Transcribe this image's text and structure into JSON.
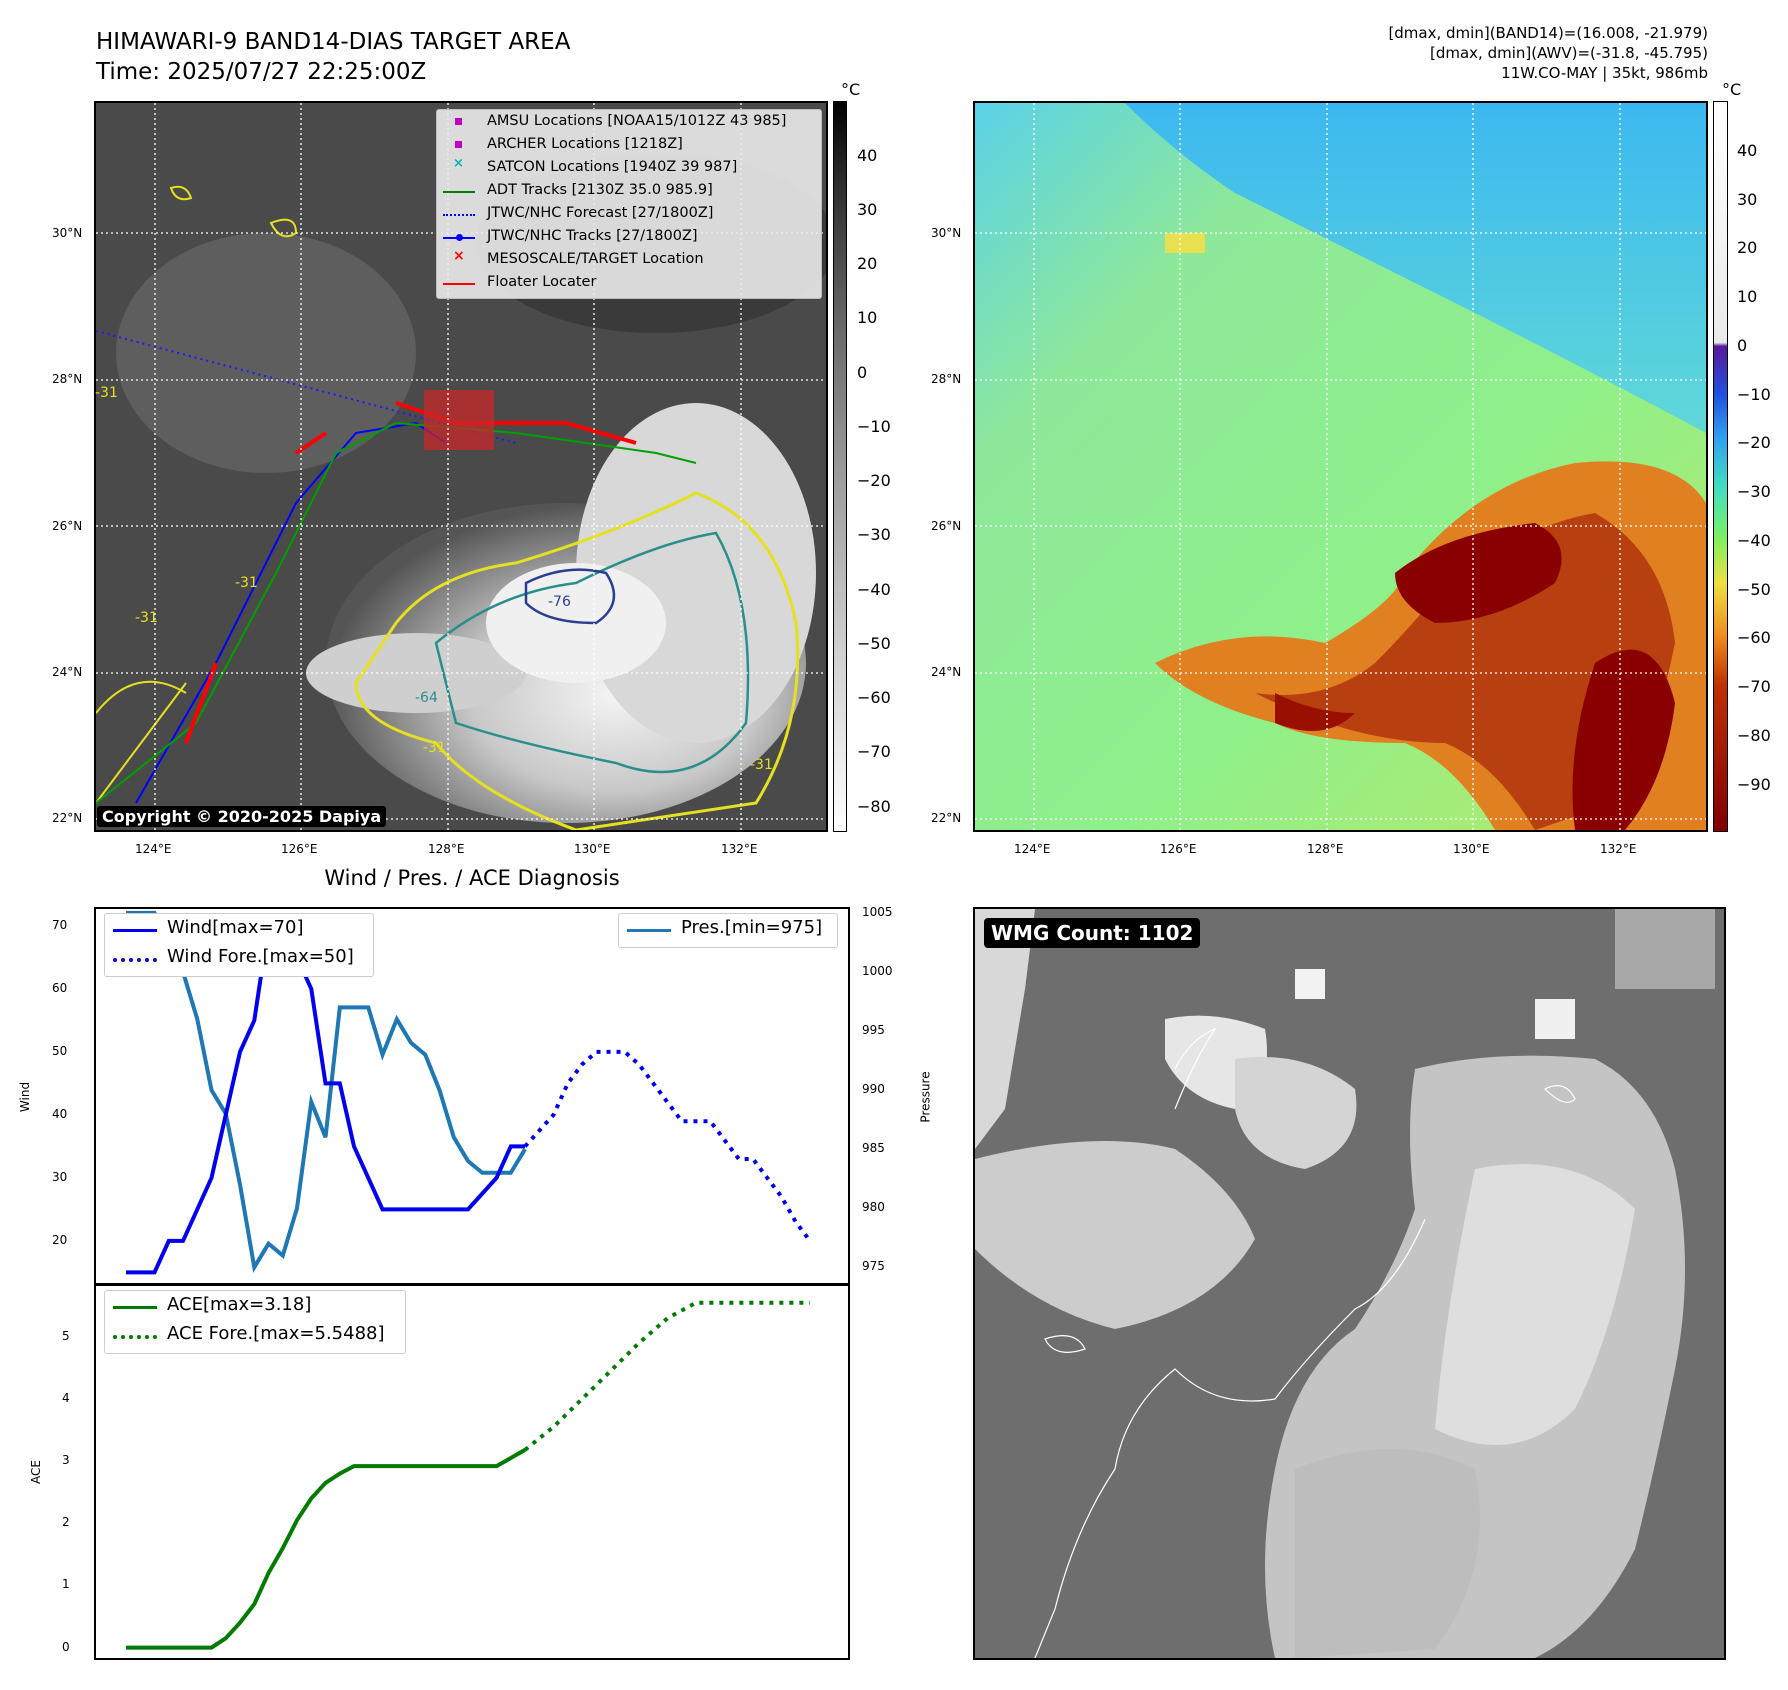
{
  "header": {
    "title_line1": "HIMAWARI-9 BAND14-DIAS TARGET AREA",
    "title_line2": "Time: 2025/07/27 22:25:00Z",
    "right_line1": "[dmax, dmin](BAND14)=(16.008, -21.979)",
    "right_line2": "[dmax, dmin](AWV)=(-31.8, -45.795)",
    "right_line3": "11W.CO-MAY | 35kt, 986mb"
  },
  "map_axes": {
    "lat_labels": [
      "30°N",
      "28°N",
      "26°N",
      "24°N",
      "22°N"
    ],
    "lon_labels": [
      "124°E",
      "126°E",
      "128°E",
      "130°E",
      "132°E"
    ]
  },
  "ir_panel": {
    "colorbar_unit": "°C",
    "colorbar_ticks": [
      "40",
      "30",
      "20",
      "10",
      "0",
      "−10",
      "−20",
      "−30",
      "−40",
      "−50",
      "−60",
      "−70",
      "−80"
    ],
    "legend": [
      {
        "label": "AMSU Locations [NOAA15/1012Z 43 985]",
        "color": "#c000c0",
        "marker": "square"
      },
      {
        "label": "ARCHER Locations [1218Z]",
        "color": "#c000c0",
        "marker": "square"
      },
      {
        "label": "SATCON Locations [1940Z 39 987]",
        "color": "#00b0b0",
        "marker": "x"
      },
      {
        "label": "ADT Tracks [2130Z 35.0 985.9]",
        "color": "#008000",
        "marker": "line"
      },
      {
        "label": "JTWC/NHC Forecast [27/1800Z]",
        "color": "#0000ff",
        "marker": "dotted"
      },
      {
        "label": "JTWC/NHC Tracks [27/1800Z]",
        "color": "#0000ff",
        "marker": "line-dot"
      },
      {
        "label": "MESOSCALE/TARGET Location",
        "color": "#ff0000",
        "marker": "x"
      },
      {
        "label": "Floater Locater",
        "color": "#ff0000",
        "marker": "line"
      }
    ],
    "contour_labels": [
      "-31",
      "-31",
      "-31",
      "-31",
      "-76",
      "-64",
      "-31"
    ],
    "copyright": "Copyright © 2020-2025 Dapiya"
  },
  "awv_panel": {
    "colorbar_unit": "°C",
    "colorbar_ticks": [
      "40",
      "30",
      "20",
      "10",
      "0",
      "−10",
      "−20",
      "−30",
      "−40",
      "−50",
      "−60",
      "−70",
      "−80",
      "−90"
    ]
  },
  "wmg_panel": {
    "label": "WMG Count: 1102"
  },
  "chart_data": [
    {
      "type": "line",
      "title": "Wind / Pres. / ACE Diagnosis",
      "ylabel": "Wind",
      "y2label": "Pressure",
      "ylim": [
        13,
        73
      ],
      "y2lim": [
        973.5,
        1005.5
      ],
      "yticks": [
        20,
        30,
        40,
        50,
        60,
        70
      ],
      "y2ticks": [
        975,
        980,
        985,
        990,
        995,
        1000,
        1005
      ],
      "x": [
        0,
        1,
        2,
        3,
        4,
        5,
        6,
        7,
        8,
        9,
        10,
        11,
        12,
        13,
        14,
        15,
        16,
        17,
        18,
        19,
        20,
        21,
        22,
        23,
        24,
        25,
        26,
        27,
        28,
        29,
        30,
        31,
        32,
        33,
        34,
        35,
        36,
        37,
        38,
        39,
        40,
        41,
        42,
        43,
        44,
        45,
        46,
        47,
        48
      ],
      "series": [
        {
          "name": "Wind[max=70]",
          "axis": "left",
          "style": "solid",
          "color": "#0000ee",
          "x": [
            0,
            2,
            3,
            4,
            6,
            8,
            9,
            10,
            11,
            12,
            13,
            14,
            15,
            16,
            17,
            18,
            20,
            22,
            24,
            26,
            27,
            28
          ],
          "values": [
            15,
            15,
            20,
            20,
            30,
            50,
            55,
            70,
            65,
            65,
            60,
            45,
            45,
            35,
            30,
            25,
            25,
            25,
            25,
            30,
            35,
            35
          ]
        },
        {
          "name": "Wind Fore.[max=50]",
          "axis": "left",
          "style": "dotted",
          "color": "#0000ee",
          "x": [
            28,
            30,
            31,
            32,
            33,
            34,
            35,
            36,
            37,
            38,
            39,
            40,
            41,
            42,
            43,
            44,
            45,
            46,
            47,
            48
          ],
          "values": [
            35,
            40,
            45,
            48,
            50,
            50,
            50,
            48,
            45,
            42,
            39,
            39,
            39,
            36,
            33,
            33,
            30,
            27,
            23,
            20
          ]
        },
        {
          "name": "Pres.[min=975]",
          "axis": "right",
          "style": "solid",
          "color": "#1f77b4",
          "x": [
            0,
            1,
            2,
            3,
            4,
            5,
            6,
            7,
            8,
            9,
            10,
            11,
            12,
            13,
            14,
            15,
            16,
            17,
            18,
            19,
            20,
            21,
            22,
            23,
            24,
            25,
            26,
            27,
            28
          ],
          "values": [
            1005,
            1005,
            1005,
            1002,
            1000,
            996,
            990,
            988,
            982,
            975,
            977,
            976,
            980,
            989,
            986,
            997,
            997,
            997,
            993,
            996,
            994,
            993,
            990,
            986,
            984,
            983,
            983,
            983,
            985
          ]
        }
      ]
    },
    {
      "type": "line",
      "ylabel": "ACE",
      "ylim": [
        -0.2,
        5.85
      ],
      "yticks": [
        0,
        1,
        2,
        3,
        4,
        5
      ],
      "series": [
        {
          "name": "ACE[max=3.18]",
          "style": "solid",
          "color": "#007a00",
          "x": [
            0,
            6,
            7,
            8,
            9,
            10,
            11,
            12,
            13,
            14,
            15,
            16,
            17,
            18,
            19,
            20,
            21,
            22,
            23,
            24,
            25,
            26,
            27,
            28
          ],
          "values": [
            0,
            0,
            0.15,
            0.4,
            0.7,
            1.2,
            1.6,
            2.05,
            2.4,
            2.65,
            2.8,
            2.92,
            2.92,
            2.92,
            2.92,
            2.92,
            2.92,
            2.92,
            2.92,
            2.92,
            2.92,
            2.92,
            3.05,
            3.18
          ]
        },
        {
          "name": "ACE Fore.[max=5.5488]",
          "style": "dotted",
          "color": "#007a00",
          "x": [
            28,
            30,
            32,
            34,
            36,
            38,
            40,
            42,
            44,
            46,
            48
          ],
          "values": [
            3.18,
            3.55,
            4.0,
            4.45,
            4.9,
            5.3,
            5.5488,
            5.5488,
            5.5488,
            5.5488,
            5.5488
          ]
        }
      ]
    }
  ]
}
